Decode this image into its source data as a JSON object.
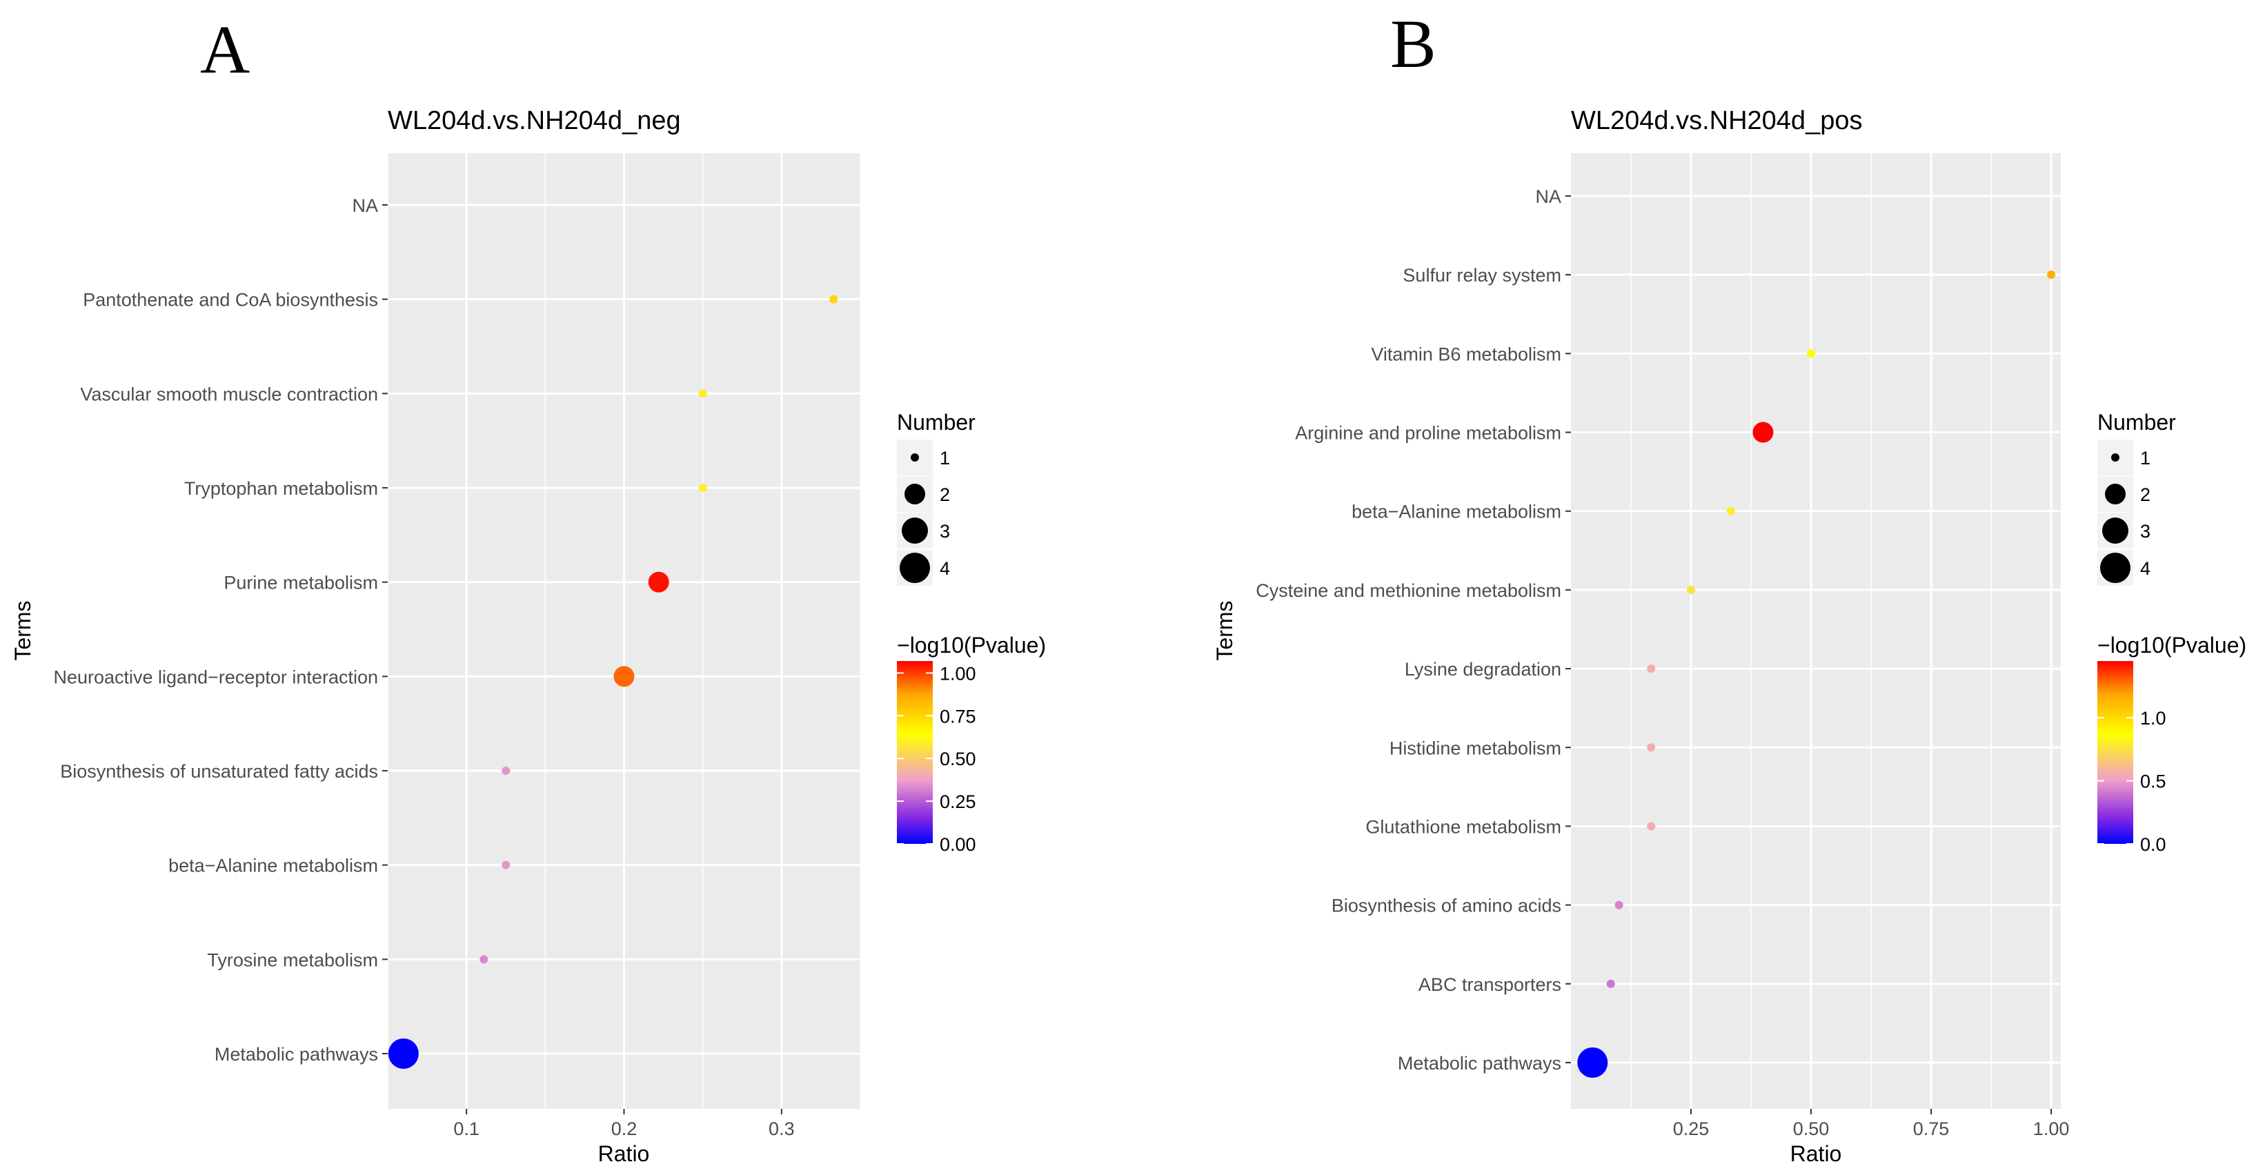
{
  "chart_data": [
    {
      "type": "scatter",
      "panel_label": "A",
      "title": "WL204d.vs.NH204d_neg",
      "xlabel": "Ratio",
      "ylabel": "Terms",
      "xlim": [
        0.05,
        0.35
      ],
      "xticks": [
        0.1,
        0.2,
        0.3
      ],
      "xtick_labels": [
        "0.1",
        "0.2",
        "0.3"
      ],
      "grid": true,
      "categories": [
        "Metabolic pathways",
        "Tyrosine metabolism",
        "beta−Alanine metabolism",
        "Biosynthesis of unsaturated fatty acids",
        "Neuroactive ligand−receptor interaction",
        "Purine metabolism",
        "Tryptophan metabolism",
        "Vascular smooth muscle contraction",
        "Pantothenate and CoA biosynthesis",
        "NA"
      ],
      "points": [
        {
          "term": "Metabolic pathways",
          "ratio": 0.06,
          "number": 4,
          "neglog10p": 0.0
        },
        {
          "term": "Tyrosine metabolism",
          "ratio": 0.111,
          "number": 1,
          "neglog10p": 0.33
        },
        {
          "term": "beta−Alanine metabolism",
          "ratio": 0.125,
          "number": 1,
          "neglog10p": 0.35
        },
        {
          "term": "Biosynthesis of unsaturated fatty acids",
          "ratio": 0.125,
          "number": 1,
          "neglog10p": 0.35
        },
        {
          "term": "Neuroactive ligand−receptor interaction",
          "ratio": 0.2,
          "number": 2,
          "neglog10p": 0.95
        },
        {
          "term": "Purine metabolism",
          "ratio": 0.222,
          "number": 2,
          "neglog10p": 1.05
        },
        {
          "term": "Tryptophan metabolism",
          "ratio": 0.25,
          "number": 1,
          "neglog10p": 0.6
        },
        {
          "term": "Vascular smooth muscle contraction",
          "ratio": 0.25,
          "number": 1,
          "neglog10p": 0.6
        },
        {
          "term": "Pantothenate and CoA biosynthesis",
          "ratio": 0.333,
          "number": 1,
          "neglog10p": 0.75
        }
      ],
      "size_legend": {
        "title": "Number",
        "values": [
          1,
          2,
          3,
          4
        ],
        "labels": [
          "1",
          "2",
          "3",
          "4"
        ]
      },
      "color_legend": {
        "title": "−log10(Pvalue)",
        "min": 0.0,
        "max": 1.07,
        "ticks": [
          0.0,
          0.25,
          0.5,
          0.75,
          1.0
        ],
        "tick_labels": [
          "0.00",
          "0.25",
          "0.50",
          "0.75",
          "1.00"
        ]
      }
    },
    {
      "type": "scatter",
      "panel_label": "B",
      "title": "WL204d.vs.NH204d_pos",
      "xlabel": "Ratio",
      "ylabel": "Terms",
      "xlim": [
        0.0,
        1.02
      ],
      "xticks": [
        0.25,
        0.5,
        0.75,
        1.0
      ],
      "xtick_labels": [
        "0.25",
        "0.50",
        "0.75",
        "1.00"
      ],
      "grid": true,
      "categories": [
        "Metabolic pathways",
        "ABC transporters",
        "Biosynthesis of amino acids",
        "Glutathione metabolism",
        "Histidine metabolism",
        "Lysine degradation",
        "Cysteine and methionine metabolism",
        "beta−Alanine metabolism",
        "Arginine and proline metabolism",
        "Vitamin B6 metabolism",
        "Sulfur relay system",
        "NA"
      ],
      "points": [
        {
          "term": "Metabolic pathways",
          "ratio": 0.045,
          "number": 4,
          "neglog10p": 0.0
        },
        {
          "term": "ABC transporters",
          "ratio": 0.083,
          "number": 1,
          "neglog10p": 0.4
        },
        {
          "term": "Biosynthesis of amino acids",
          "ratio": 0.1,
          "number": 1,
          "neglog10p": 0.43
        },
        {
          "term": "Glutathione metabolism",
          "ratio": 0.167,
          "number": 1,
          "neglog10p": 0.55
        },
        {
          "term": "Histidine metabolism",
          "ratio": 0.167,
          "number": 1,
          "neglog10p": 0.55
        },
        {
          "term": "Lysine degradation",
          "ratio": 0.167,
          "number": 1,
          "neglog10p": 0.55
        },
        {
          "term": "Cysteine and methionine metabolism",
          "ratio": 0.25,
          "number": 1,
          "neglog10p": 0.75
        },
        {
          "term": "beta−Alanine metabolism",
          "ratio": 0.333,
          "number": 1,
          "neglog10p": 0.8
        },
        {
          "term": "Arginine and proline metabolism",
          "ratio": 0.4,
          "number": 2,
          "neglog10p": 1.45
        },
        {
          "term": "Vitamin B6 metabolism",
          "ratio": 0.5,
          "number": 1,
          "neglog10p": 0.85
        },
        {
          "term": "Sulfur relay system",
          "ratio": 1.0,
          "number": 1,
          "neglog10p": 1.15
        }
      ],
      "size_legend": {
        "title": "Number",
        "values": [
          1,
          2,
          3,
          4
        ],
        "labels": [
          "1",
          "2",
          "3",
          "4"
        ]
      },
      "color_legend": {
        "title": "−log10(Pvalue)",
        "min": 0.0,
        "max": 1.45,
        "ticks": [
          0.0,
          0.5,
          1.0
        ],
        "tick_labels": [
          "0.0",
          "0.5",
          "1.0"
        ]
      }
    }
  ]
}
